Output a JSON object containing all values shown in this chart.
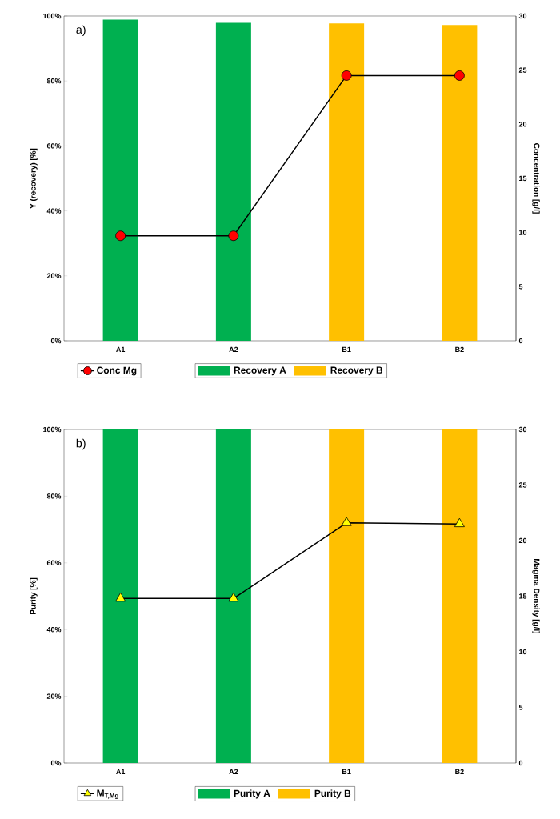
{
  "chart_data": [
    {
      "type": "bar",
      "categories": [
        "A1",
        "A2",
        "B1",
        "B2"
      ],
      "ylabel": "Y (recovery) [%]",
      "y2label": "Concentration [g/l]",
      "annotations": [
        "a)"
      ],
      "legend": "bottom",
      "ylim": [
        0,
        100
      ],
      "yticks": [
        {
          "value": 0,
          "label": "0%"
        },
        {
          "value": 20,
          "label": "20%"
        },
        {
          "value": 40,
          "label": "40%"
        },
        {
          "value": 60,
          "label": "60%"
        },
        {
          "value": 80,
          "label": "80%"
        },
        {
          "value": 100,
          "label": "100%"
        }
      ],
      "y2lim": [
        0,
        30
      ],
      "y2ticks": [
        0,
        5,
        10,
        15,
        20,
        25,
        30
      ],
      "marker": "circle",
      "series": [
        {
          "name": "Conc Mg",
          "type": "line",
          "axis": "y2",
          "color": "#ff0000",
          "values": [
            9.7,
            9.7,
            24.5,
            24.5
          ]
        },
        {
          "name": "Recovery A",
          "color": "#00b050",
          "values": [
            98.9,
            97.9,
            null,
            null
          ]
        },
        {
          "name": "Recovery B",
          "color": "#ffc000",
          "values": [
            null,
            null,
            97.7,
            97.2
          ]
        }
      ]
    },
    {
      "type": "bar",
      "categories": [
        "A1",
        "A2",
        "B1",
        "B2"
      ],
      "ylabel": "Purity [%]",
      "y2label": "Magma Density [g/l]",
      "annotations": [
        "b)"
      ],
      "legend": "bottom",
      "ylim": [
        0,
        100
      ],
      "yticks": [
        {
          "value": 0,
          "label": "0%"
        },
        {
          "value": 20,
          "label": "20%"
        },
        {
          "value": 40,
          "label": "40%"
        },
        {
          "value": 60,
          "label": "60%"
        },
        {
          "value": 80,
          "label": "80%"
        },
        {
          "value": 100,
          "label": "100%"
        }
      ],
      "y2lim": [
        0,
        30
      ],
      "y2ticks": [
        0,
        5,
        10,
        15,
        20,
        25,
        30
      ],
      "marker": "triangle",
      "series": [
        {
          "name": "M$_{T,Mg}$",
          "type": "line",
          "axis": "y2",
          "color": "#ffff00",
          "values": [
            14.8,
            14.8,
            21.6,
            21.5
          ]
        },
        {
          "name": "Purity A",
          "color": "#00b050",
          "values": [
            100,
            100,
            null,
            null
          ]
        },
        {
          "name": "Purity B",
          "color": "#ffc000",
          "values": [
            null,
            null,
            100,
            100
          ]
        }
      ]
    }
  ]
}
